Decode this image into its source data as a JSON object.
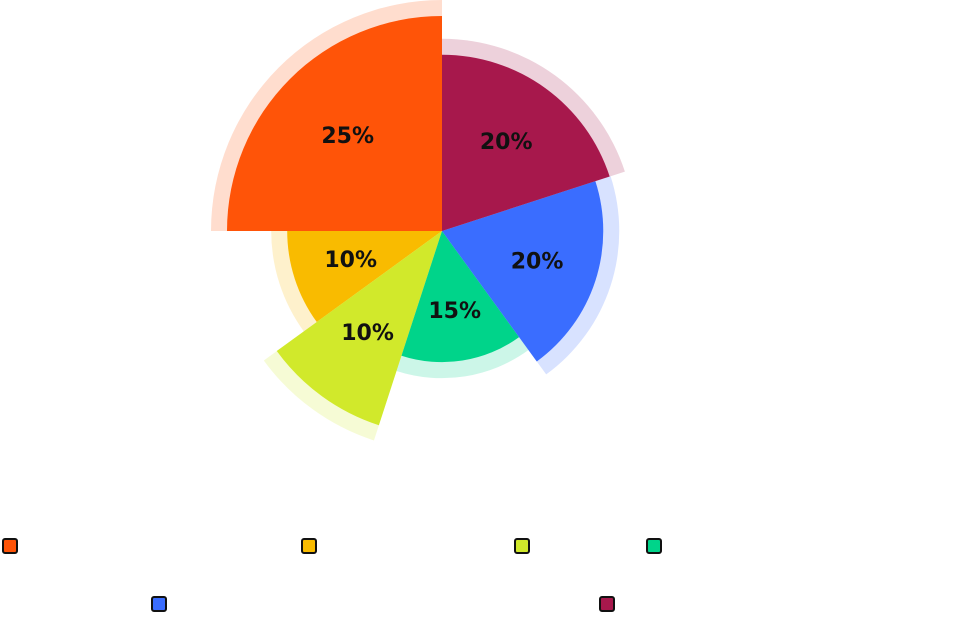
{
  "chart_data": {
    "type": "pie",
    "variant": "rose",
    "values": [
      25,
      10,
      10,
      15,
      20,
      20
    ],
    "labels": [
      "25%",
      "10%",
      "10%",
      "15%",
      "20%",
      "20%"
    ],
    "relative_radius": [
      1.0,
      0.72,
      0.95,
      0.61,
      0.75,
      0.82
    ],
    "colors": [
      "#FF5408",
      "#F9BB00",
      "#D1E92B",
      "#00D48A",
      "#3A6DFF",
      "#A7184C"
    ],
    "legend": {
      "placement": "bottom",
      "entries": [
        "",
        "",
        "",
        "",
        "",
        ""
      ]
    },
    "title": ""
  }
}
